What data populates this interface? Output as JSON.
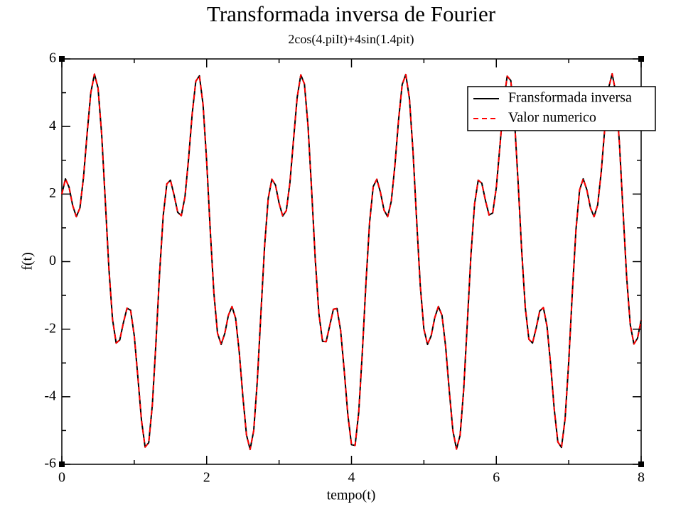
{
  "chart_data": {
    "type": "line",
    "title": "Transformada inversa de Fourier",
    "subtitle": "2cos(4.piIt)+4sin(1.4pit)",
    "x_label": "tempo(t)",
    "y_label": "f(t)",
    "x": [
      0,
      0.05,
      0.1,
      0.15,
      0.2,
      0.25,
      0.3,
      0.35,
      0.4,
      0.45,
      0.5,
      0.55,
      0.6,
      0.65,
      0.7,
      0.75,
      0.8,
      0.85,
      0.9,
      0.95,
      1,
      1.05,
      1.1,
      1.15,
      1.2,
      1.25,
      1.3,
      1.35,
      1.4,
      1.45,
      1.5,
      1.55,
      1.6,
      1.65,
      1.7,
      1.75,
      1.8,
      1.85,
      1.9,
      1.95,
      2,
      2.05,
      2.1,
      2.15,
      2.2,
      2.25,
      2.3,
      2.35,
      2.4,
      2.45,
      2.5,
      2.55,
      2.6,
      2.65,
      2.7,
      2.75,
      2.8,
      2.85,
      2.9,
      2.95,
      3,
      3.05,
      3.1,
      3.15,
      3.2,
      3.25,
      3.3,
      3.35,
      3.4,
      3.45,
      3.5,
      3.55,
      3.6,
      3.65,
      3.7,
      3.75,
      3.8,
      3.85,
      3.9,
      3.95,
      4,
      4.05,
      4.1,
      4.15,
      4.2,
      4.25,
      4.3,
      4.35,
      4.4,
      4.45,
      4.5,
      4.55,
      4.6,
      4.65,
      4.7,
      4.75,
      4.8,
      4.85,
      4.9,
      4.95,
      5,
      5.05,
      5.1,
      5.15,
      5.2,
      5.25,
      5.3,
      5.35,
      5.4,
      5.45,
      5.5,
      5.55,
      5.6,
      5.65,
      5.7,
      5.75,
      5.8,
      5.85,
      5.9,
      5.95,
      6,
      6.05,
      6.1,
      6.15,
      6.2,
      6.25,
      6.3,
      6.35,
      6.4,
      6.45,
      6.5,
      6.55,
      6.6,
      6.65,
      6.7,
      6.75,
      6.8,
      6.85,
      6.9,
      6.95,
      7,
      7.05,
      7.1,
      7.15,
      7.2,
      7.25,
      7.3,
      7.35,
      7.4,
      7.45,
      7.5,
      7.55,
      7.6,
      7.65,
      7.7,
      7.75,
      7.8,
      7.85,
      7.9,
      7.95,
      8
    ],
    "series": [
      {
        "name": "Fransformada inversa",
        "color": "#000000",
        "dash": "solid",
        "values": [
          2.0,
          2.45,
          2.2,
          1.66,
          1.33,
          1.59,
          2.51,
          3.81,
          5.0,
          5.55,
          5.14,
          3.77,
          1.8,
          -0.21,
          -1.71,
          -2.41,
          -2.32,
          -1.81,
          -1.38,
          -1.44,
          -2.19,
          -3.42,
          -4.7,
          -5.49,
          -5.36,
          -4.24,
          -2.39,
          -0.34,
          1.36,
          2.3,
          2.41,
          1.97,
          1.46,
          1.36,
          1.91,
          3.04,
          4.37,
          5.34,
          5.5,
          4.65,
          2.97,
          0.91,
          -0.94,
          -2.12,
          -2.45,
          -2.13,
          -1.59,
          -1.33,
          -1.68,
          -2.68,
          -4.0,
          -5.13,
          -5.56,
          -5.0,
          -3.51,
          -1.5,
          0.46,
          1.87,
          2.44,
          2.27,
          1.73,
          1.35,
          1.51,
          2.34,
          3.62,
          4.86,
          5.53,
          5.26,
          4.01,
          2.1,
          0.06,
          -1.54,
          -2.36,
          -2.37,
          -1.89,
          -1.41,
          -1.39,
          -2.04,
          -3.23,
          -4.54,
          -5.42,
          -5.44,
          -4.46,
          -2.68,
          -0.62,
          1.16,
          2.22,
          2.44,
          2.05,
          1.52,
          1.33,
          1.79,
          2.86,
          4.19,
          5.24,
          5.54,
          4.83,
          3.25,
          1.21,
          -0.71,
          -2.0,
          -2.45,
          -2.2,
          -1.66,
          -1.33,
          -1.59,
          -2.51,
          -3.81,
          -5.0,
          -5.55,
          -5.14,
          -3.77,
          -1.8,
          0.21,
          1.71,
          2.41,
          2.32,
          1.81,
          1.38,
          1.44,
          2.19,
          3.42,
          4.7,
          5.49,
          5.36,
          4.24,
          2.39,
          0.34,
          -1.36,
          -2.3,
          -2.41,
          -1.97,
          -1.46,
          -1.36,
          -1.91,
          -3.04,
          -4.37,
          -5.34,
          -5.5,
          -4.65,
          -2.97,
          -0.91,
          0.94,
          2.12,
          2.45,
          2.13,
          1.59,
          1.33,
          1.68,
          2.68,
          4.0,
          5.13,
          5.56,
          5.0,
          3.51,
          1.5,
          -0.46,
          -1.87,
          -2.44,
          -2.27,
          -1.73
        ]
      },
      {
        "name": "Valor numerico",
        "color": "#ff0000",
        "dash": "dashed",
        "values": [
          2.0,
          2.45,
          2.2,
          1.66,
          1.33,
          1.59,
          2.51,
          3.81,
          5.0,
          5.55,
          5.14,
          3.77,
          1.8,
          -0.21,
          -1.71,
          -2.41,
          -2.32,
          -1.81,
          -1.38,
          -1.44,
          -2.19,
          -3.42,
          -4.7,
          -5.49,
          -5.36,
          -4.24,
          -2.39,
          -0.34,
          1.36,
          2.3,
          2.41,
          1.97,
          1.46,
          1.36,
          1.91,
          3.04,
          4.37,
          5.34,
          5.5,
          4.65,
          2.97,
          0.91,
          -0.94,
          -2.12,
          -2.45,
          -2.13,
          -1.59,
          -1.33,
          -1.68,
          -2.68,
          -4.0,
          -5.13,
          -5.56,
          -5.0,
          -3.51,
          -1.5,
          0.46,
          1.87,
          2.44,
          2.27,
          1.73,
          1.35,
          1.51,
          2.34,
          3.62,
          4.86,
          5.53,
          5.26,
          4.01,
          2.1,
          0.06,
          -1.54,
          -2.36,
          -2.37,
          -1.89,
          -1.41,
          -1.39,
          -2.04,
          -3.23,
          -4.54,
          -5.42,
          -5.44,
          -4.46,
          -2.68,
          -0.62,
          1.16,
          2.22,
          2.44,
          2.05,
          1.52,
          1.33,
          1.79,
          2.86,
          4.19,
          5.24,
          5.54,
          4.83,
          3.25,
          1.21,
          -0.71,
          -2.0,
          -2.45,
          -2.2,
          -1.66,
          -1.33,
          -1.59,
          -2.51,
          -3.81,
          -5.0,
          -5.55,
          -5.14,
          -3.77,
          -1.8,
          0.21,
          1.71,
          2.41,
          2.32,
          1.81,
          1.38,
          1.44,
          2.19,
          3.42,
          4.7,
          5.49,
          5.36,
          4.24,
          2.39,
          0.34,
          -1.36,
          -2.3,
          -2.41,
          -1.97,
          -1.46,
          -1.36,
          -1.91,
          -3.04,
          -4.37,
          -5.34,
          -5.5,
          -4.65,
          -2.97,
          -0.91,
          0.94,
          2.12,
          2.45,
          2.13,
          1.59,
          1.33,
          1.68,
          2.68,
          4.0,
          5.13,
          5.56,
          5.0,
          3.51,
          1.5,
          -0.46,
          -1.87,
          -2.44,
          -2.27,
          -1.73
        ]
      }
    ],
    "xlim": [
      0,
      8
    ],
    "xticks": [
      0,
      2,
      4,
      6,
      8
    ],
    "x_minor_ticks": [
      1,
      3,
      5,
      7
    ],
    "ylim": [
      -6,
      6
    ],
    "yticks": [
      -6,
      -4,
      -2,
      0,
      2,
      4,
      6
    ],
    "y_minor_ticks": [
      -5,
      -3,
      -1,
      1,
      3,
      5
    ],
    "grid": false,
    "legend": "upper-right"
  }
}
